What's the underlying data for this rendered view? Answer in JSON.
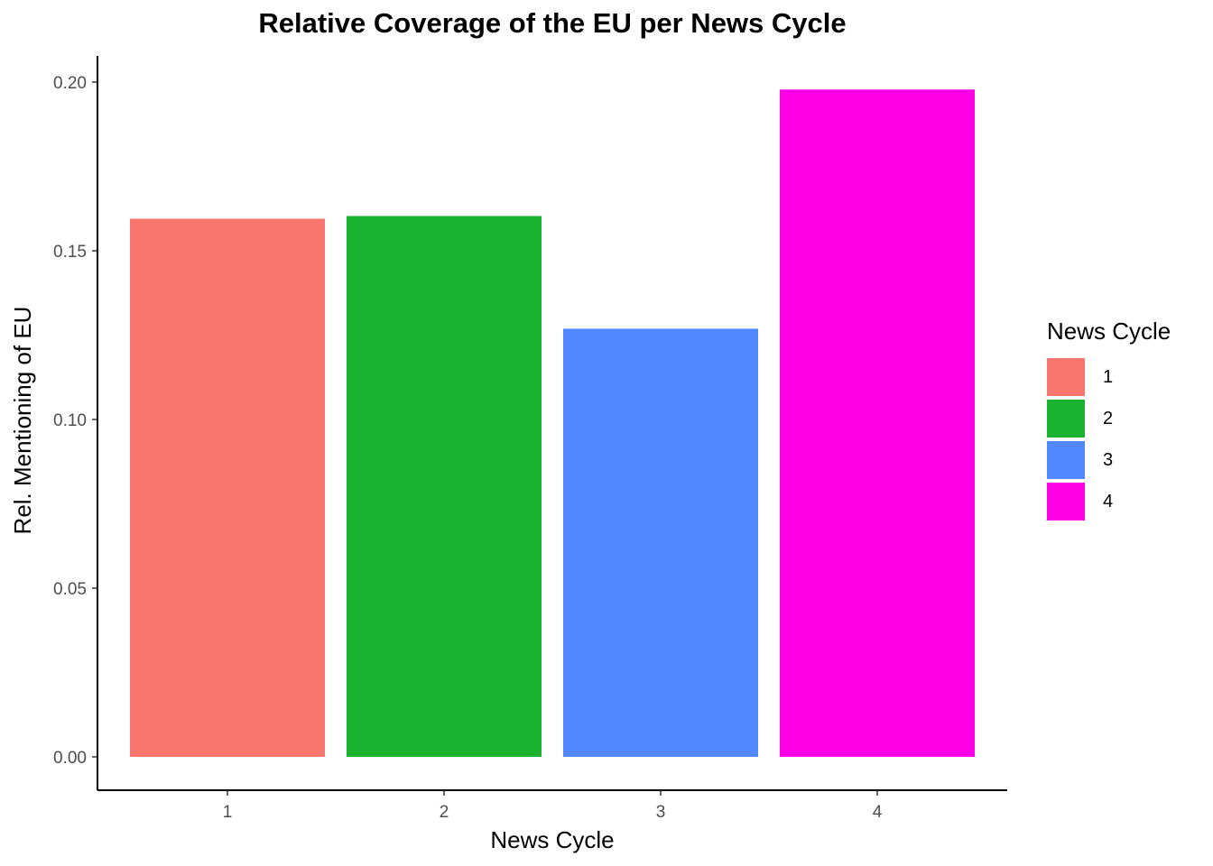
{
  "chart_data": {
    "type": "bar",
    "title": "Relative Coverage of the EU per News Cycle",
    "xlabel": "News Cycle",
    "ylabel": "Rel. Mentioning of EU",
    "categories": [
      "1",
      "2",
      "3",
      "4"
    ],
    "values": [
      0.1595,
      0.1603,
      0.1269,
      0.1978
    ],
    "colors": [
      "#F8766D",
      "#1AB22E",
      "#5188FF",
      "#FF00E6"
    ],
    "ylim": [
      0,
      0.2
    ],
    "yticks": [
      "0.00",
      "0.05",
      "0.10",
      "0.15",
      "0.20"
    ],
    "grid": false,
    "legend": {
      "title": "News Cycle",
      "placement": "right",
      "entries": [
        "1",
        "2",
        "3",
        "4"
      ]
    }
  }
}
